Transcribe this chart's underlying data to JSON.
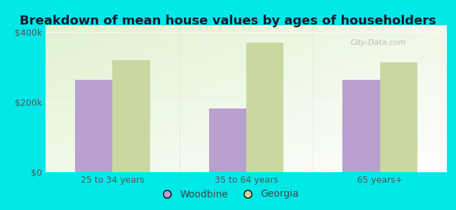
{
  "title": "Breakdown of mean house values by ages of householders",
  "categories": [
    "25 to 34 years",
    "35 to 64 years",
    "65 years+"
  ],
  "woodbine_values": [
    265000,
    183000,
    265000
  ],
  "georgia_values": [
    320000,
    370000,
    315000
  ],
  "ylim": [
    0,
    420000
  ],
  "ytick_labels": [
    "$0",
    "$200k",
    "$400k"
  ],
  "ytick_vals": [
    0,
    200000,
    400000
  ],
  "woodbine_color": "#b8a0d0",
  "georgia_color": "#c8d8a0",
  "background_color": "#00e8e8",
  "legend_woodbine": "Woodbine",
  "legend_georgia": "Georgia",
  "bar_width": 0.28,
  "title_fontsize": 13,
  "tick_fontsize": 9,
  "legend_fontsize": 10
}
